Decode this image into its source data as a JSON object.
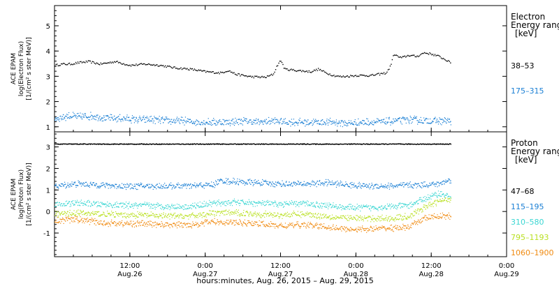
{
  "chart_data": [
    {
      "type": "scatter",
      "title": "",
      "ylabel": [
        "ACE EPAM",
        "log(Electron Flux)",
        "[1/(cm² s ster MeV)]"
      ],
      "ylim": [
        0.8,
        5.8
      ],
      "yticks": [
        1,
        2,
        3,
        4,
        5
      ],
      "legend_title": [
        "Electron",
        "Energy ranges",
        "[keV]"
      ],
      "series": [
        {
          "name": "38–53",
          "color": "#000000",
          "points": [
            [
              0.0,
              3.45
            ],
            [
              0.1,
              3.5
            ],
            [
              0.2,
              3.5
            ],
            [
              0.3,
              3.55
            ],
            [
              0.45,
              3.6
            ],
            [
              0.6,
              3.5
            ],
            [
              0.8,
              3.6
            ],
            [
              1.0,
              3.45
            ],
            [
              1.2,
              3.5
            ],
            [
              1.4,
              3.45
            ],
            [
              1.6,
              3.35
            ],
            [
              1.8,
              3.3
            ],
            [
              2.0,
              3.2
            ],
            [
              2.2,
              3.15
            ],
            [
              2.3,
              3.25
            ],
            [
              2.4,
              3.1
            ],
            [
              2.5,
              3.05
            ],
            [
              2.6,
              3.0
            ],
            [
              2.8,
              2.98
            ],
            [
              2.9,
              3.1
            ],
            [
              2.95,
              3.45
            ],
            [
              3.0,
              3.65
            ],
            [
              3.05,
              3.3
            ],
            [
              3.2,
              3.25
            ],
            [
              3.4,
              3.2
            ],
            [
              3.5,
              3.3
            ],
            [
              3.6,
              3.15
            ],
            [
              3.7,
              3.05
            ],
            [
              3.8,
              3.0
            ],
            [
              4.0,
              3.05
            ],
            [
              4.2,
              3.05
            ],
            [
              4.3,
              3.1
            ],
            [
              4.4,
              3.15
            ],
            [
              4.45,
              3.4
            ],
            [
              4.5,
              3.9
            ],
            [
              4.55,
              3.8
            ],
            [
              4.6,
              3.75
            ],
            [
              4.7,
              3.85
            ],
            [
              4.8,
              3.8
            ],
            [
              4.9,
              3.95
            ],
            [
              5.0,
              3.9
            ],
            [
              5.1,
              3.8
            ],
            [
              5.2,
              3.65
            ],
            [
              5.25,
              3.55
            ]
          ]
        },
        {
          "name": "175–315",
          "color": "#1a7fd4",
          "points": [
            [
              0.0,
              1.35
            ],
            [
              0.1,
              1.4
            ],
            [
              0.2,
              1.45
            ],
            [
              0.3,
              1.4
            ],
            [
              0.5,
              1.45
            ],
            [
              0.7,
              1.35
            ],
            [
              0.9,
              1.35
            ],
            [
              1.1,
              1.3
            ],
            [
              1.3,
              1.3
            ],
            [
              1.5,
              1.25
            ],
            [
              1.7,
              1.25
            ],
            [
              1.9,
              1.2
            ],
            [
              2.1,
              1.2
            ],
            [
              2.3,
              1.2
            ],
            [
              2.5,
              1.25
            ],
            [
              2.7,
              1.2
            ],
            [
              2.9,
              1.25
            ],
            [
              3.1,
              1.2
            ],
            [
              3.3,
              1.2
            ],
            [
              3.5,
              1.2
            ],
            [
              3.7,
              1.2
            ],
            [
              3.9,
              1.15
            ],
            [
              4.1,
              1.2
            ],
            [
              4.3,
              1.2
            ],
            [
              4.5,
              1.25
            ],
            [
              4.7,
              1.3
            ],
            [
              4.9,
              1.25
            ],
            [
              5.1,
              1.25
            ],
            [
              5.25,
              1.25
            ]
          ]
        }
      ]
    },
    {
      "type": "scatter",
      "title": "",
      "ylabel": [
        "ACE EPAM",
        "log(Proton Flux)",
        "[1/(cm² s ster MeV)]"
      ],
      "ylim": [
        -2.1,
        3.7
      ],
      "yticks": [
        -1,
        0,
        1,
        2,
        3
      ],
      "legend_title": [
        "Proton",
        "Energy ranges",
        "[keV]"
      ],
      "series": [
        {
          "name": "47–68",
          "color": "#000000",
          "points": [
            [
              0.0,
              3.15
            ],
            [
              1.0,
              3.15
            ],
            [
              2.0,
              3.15
            ],
            [
              3.0,
              3.15
            ],
            [
              4.0,
              3.15
            ],
            [
              5.0,
              3.15
            ],
            [
              5.25,
              3.15
            ]
          ]
        },
        {
          "name": "115–195",
          "color": "#1a7fd4",
          "points": [
            [
              0.0,
              1.2
            ],
            [
              0.3,
              1.3
            ],
            [
              0.6,
              1.25
            ],
            [
              0.9,
              1.2
            ],
            [
              1.2,
              1.2
            ],
            [
              1.5,
              1.2
            ],
            [
              1.8,
              1.2
            ],
            [
              2.0,
              1.25
            ],
            [
              2.1,
              1.25
            ],
            [
              2.2,
              1.45
            ],
            [
              2.4,
              1.4
            ],
            [
              2.7,
              1.35
            ],
            [
              3.0,
              1.3
            ],
            [
              3.3,
              1.3
            ],
            [
              3.6,
              1.35
            ],
            [
              3.9,
              1.25
            ],
            [
              4.2,
              1.2
            ],
            [
              4.5,
              1.2
            ],
            [
              4.8,
              1.25
            ],
            [
              5.1,
              1.3
            ],
            [
              5.25,
              1.5
            ]
          ]
        },
        {
          "name": "310–580",
          "color": "#3ad6d2",
          "points": [
            [
              0.0,
              0.35
            ],
            [
              0.3,
              0.4
            ],
            [
              0.6,
              0.35
            ],
            [
              0.9,
              0.3
            ],
            [
              1.2,
              0.3
            ],
            [
              1.5,
              0.25
            ],
            [
              1.8,
              0.25
            ],
            [
              2.1,
              0.4
            ],
            [
              2.4,
              0.45
            ],
            [
              2.7,
              0.4
            ],
            [
              3.0,
              0.35
            ],
            [
              3.3,
              0.4
            ],
            [
              3.6,
              0.3
            ],
            [
              3.9,
              0.2
            ],
            [
              4.2,
              0.2
            ],
            [
              4.5,
              0.25
            ],
            [
              4.7,
              0.3
            ],
            [
              4.9,
              0.6
            ],
            [
              5.1,
              0.85
            ],
            [
              5.25,
              0.7
            ]
          ]
        },
        {
          "name": "795–1193",
          "color": "#b9e020",
          "points": [
            [
              0.0,
              -0.1
            ],
            [
              0.3,
              -0.05
            ],
            [
              0.6,
              -0.1
            ],
            [
              0.9,
              -0.15
            ],
            [
              1.2,
              -0.15
            ],
            [
              1.5,
              -0.2
            ],
            [
              1.8,
              -0.2
            ],
            [
              2.1,
              -0.05
            ],
            [
              2.4,
              -0.05
            ],
            [
              2.7,
              -0.1
            ],
            [
              3.0,
              -0.15
            ],
            [
              3.3,
              -0.1
            ],
            [
              3.6,
              -0.2
            ],
            [
              3.9,
              -0.3
            ],
            [
              4.2,
              -0.3
            ],
            [
              4.5,
              -0.3
            ],
            [
              4.7,
              -0.2
            ],
            [
              4.9,
              0.2
            ],
            [
              5.1,
              0.5
            ],
            [
              5.25,
              0.6
            ]
          ]
        },
        {
          "name": "1060–1900",
          "color": "#f08a10",
          "points": [
            [
              0.0,
              -0.4
            ],
            [
              0.3,
              -0.35
            ],
            [
              0.6,
              -0.5
            ],
            [
              0.9,
              -0.55
            ],
            [
              1.2,
              -0.55
            ],
            [
              1.5,
              -0.6
            ],
            [
              1.8,
              -0.6
            ],
            [
              2.1,
              -0.45
            ],
            [
              2.4,
              -0.5
            ],
            [
              2.7,
              -0.55
            ],
            [
              3.0,
              -0.65
            ],
            [
              3.3,
              -0.6
            ],
            [
              3.6,
              -0.7
            ],
            [
              3.9,
              -0.8
            ],
            [
              4.2,
              -0.8
            ],
            [
              4.5,
              -0.75
            ],
            [
              4.7,
              -0.7
            ],
            [
              4.9,
              -0.3
            ],
            [
              5.1,
              -0.2
            ],
            [
              5.25,
              -0.2
            ]
          ]
        }
      ]
    }
  ],
  "x_axis": {
    "range_days": [
      0,
      6
    ],
    "ticks": [
      {
        "day": 1,
        "time": "12:00",
        "date": "Aug.26"
      },
      {
        "day": 2,
        "time": "0:00",
        "date": "Aug.27"
      },
      {
        "day": 3,
        "time": "12:00",
        "date": "Aug.27"
      },
      {
        "day": 4,
        "time": "0:00",
        "date": "Aug.28"
      },
      {
        "day": 5,
        "time": "12:00",
        "date": "Aug.28"
      },
      {
        "day": 6,
        "time": "0:00",
        "date": "Aug.29"
      }
    ],
    "label": "hours:minutes, Aug. 26, 2015 – Aug. 29, 2015"
  }
}
